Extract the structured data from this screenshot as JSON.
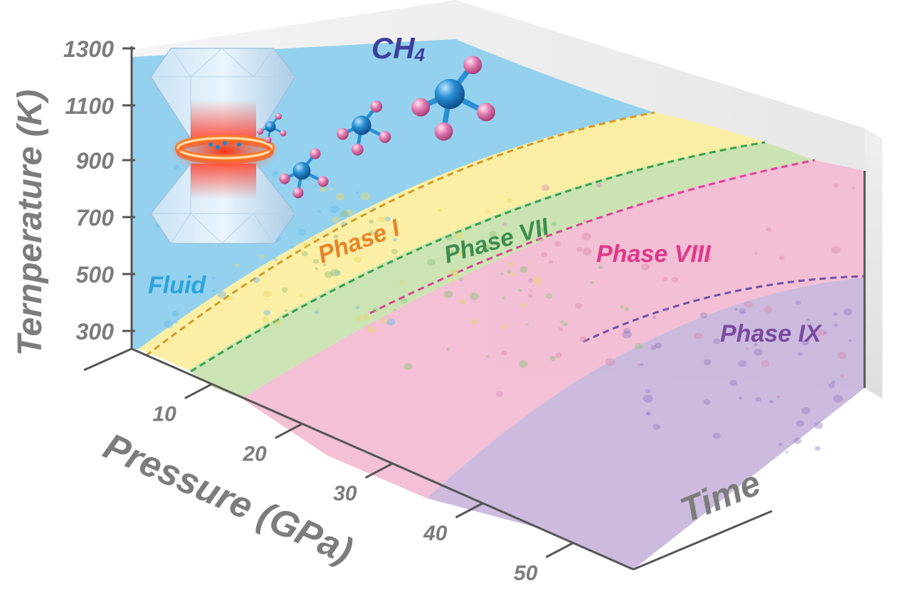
{
  "axes": {
    "temperature": {
      "title": "Ternperature (K)",
      "ticks": [
        "300",
        "500",
        "700",
        "900",
        "1100",
        "1300"
      ]
    },
    "pressure": {
      "title": "Pressure (GPa)",
      "ticks": [
        "10",
        "20",
        "30",
        "40",
        "50"
      ]
    },
    "time": {
      "title": "Time"
    }
  },
  "molecule": {
    "formula": "CH",
    "subscript": "4"
  },
  "phases": [
    {
      "name": "Fluid",
      "color": "#2aa4dc"
    },
    {
      "name": "Phase I",
      "color": "#e8832a"
    },
    {
      "name": "Phase VII",
      "color": "#3d8d4e"
    },
    {
      "name": "Phase VIII",
      "color": "#e0398a"
    },
    {
      "name": "Phase IX",
      "color": "#7a4aa0"
    }
  ],
  "colors": {
    "fluid_region": "#8ecfee",
    "phase1_region": "#fbeea0",
    "phase7_region": "#c9e3b0",
    "phase8_region": "#f2bdd3",
    "phase9_region": "#c9b7dd",
    "boundary_phase1": "#d39a2a",
    "boundary_phase7": "#3aa148",
    "boundary_phase8": "#d94393",
    "boundary_phase9": "#7150a6",
    "axis": "#555555",
    "atom_carbon": "#1e86c9",
    "atom_hydrogen": "#e27bb0"
  },
  "icons": [
    "diamond-anvil-cell-icon",
    "methane-molecule-icon"
  ]
}
